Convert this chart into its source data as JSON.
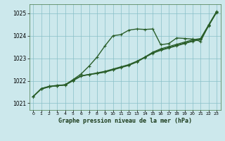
{
  "xlabel": "Graphe pression niveau de la mer (hPa)",
  "background_color": "#cce8ec",
  "grid_color": "#88bfc8",
  "line_color": "#2a5e2a",
  "xlim": [
    -0.5,
    23.5
  ],
  "ylim": [
    1020.7,
    1025.4
  ],
  "yticks": [
    1021,
    1022,
    1023,
    1024,
    1025
  ],
  "xticks": [
    0,
    1,
    2,
    3,
    4,
    5,
    6,
    7,
    8,
    9,
    10,
    11,
    12,
    13,
    14,
    15,
    16,
    17,
    18,
    19,
    20,
    21,
    22,
    23
  ],
  "line1_x": [
    0,
    1,
    2,
    3,
    4,
    5,
    6,
    7,
    8,
    9,
    10,
    11,
    12,
    13,
    14,
    15,
    16,
    17,
    18,
    19,
    20,
    21,
    22,
    23
  ],
  "line1_y": [
    1021.3,
    1021.65,
    1021.75,
    1021.78,
    1021.82,
    1022.05,
    1022.3,
    1022.65,
    1023.05,
    1023.55,
    1024.0,
    1024.05,
    1024.25,
    1024.3,
    1024.28,
    1024.3,
    1023.6,
    1023.65,
    1023.9,
    1023.88,
    1023.85,
    1023.75,
    1024.45,
    1025.05
  ],
  "line2_x": [
    0,
    1,
    2,
    3,
    4,
    5,
    6,
    7,
    8,
    9,
    10,
    11,
    12,
    13,
    14,
    15,
    16,
    17,
    18,
    19,
    20,
    21,
    22,
    23
  ],
  "line2_y": [
    1021.3,
    1021.65,
    1021.75,
    1021.8,
    1021.82,
    1022.02,
    1022.22,
    1022.28,
    1022.35,
    1022.42,
    1022.52,
    1022.62,
    1022.72,
    1022.87,
    1023.05,
    1023.27,
    1023.42,
    1023.52,
    1023.62,
    1023.72,
    1023.82,
    1023.88,
    1024.48,
    1025.08
  ],
  "line3_x": [
    0,
    1,
    2,
    3,
    4,
    5,
    6,
    7,
    8,
    9,
    10,
    11,
    12,
    13,
    14,
    15,
    16,
    17,
    18,
    19,
    20,
    21,
    22,
    23
  ],
  "line3_y": [
    1021.3,
    1021.63,
    1021.73,
    1021.78,
    1021.82,
    1022.02,
    1022.22,
    1022.28,
    1022.33,
    1022.4,
    1022.5,
    1022.6,
    1022.7,
    1022.85,
    1023.05,
    1023.25,
    1023.38,
    1023.48,
    1023.58,
    1023.68,
    1023.78,
    1023.85,
    1024.45,
    1025.05
  ],
  "line4_x": [
    0,
    1,
    2,
    3,
    4,
    5,
    6,
    7,
    8,
    9,
    10,
    11,
    12,
    13,
    14,
    15,
    16,
    17,
    18,
    19,
    20,
    21,
    22,
    23
  ],
  "line4_y": [
    1021.3,
    1021.63,
    1021.73,
    1021.78,
    1021.8,
    1022.0,
    1022.2,
    1022.27,
    1022.32,
    1022.38,
    1022.48,
    1022.58,
    1022.68,
    1022.83,
    1023.03,
    1023.22,
    1023.35,
    1023.45,
    1023.55,
    1023.65,
    1023.75,
    1023.83,
    1024.43,
    1025.03
  ]
}
